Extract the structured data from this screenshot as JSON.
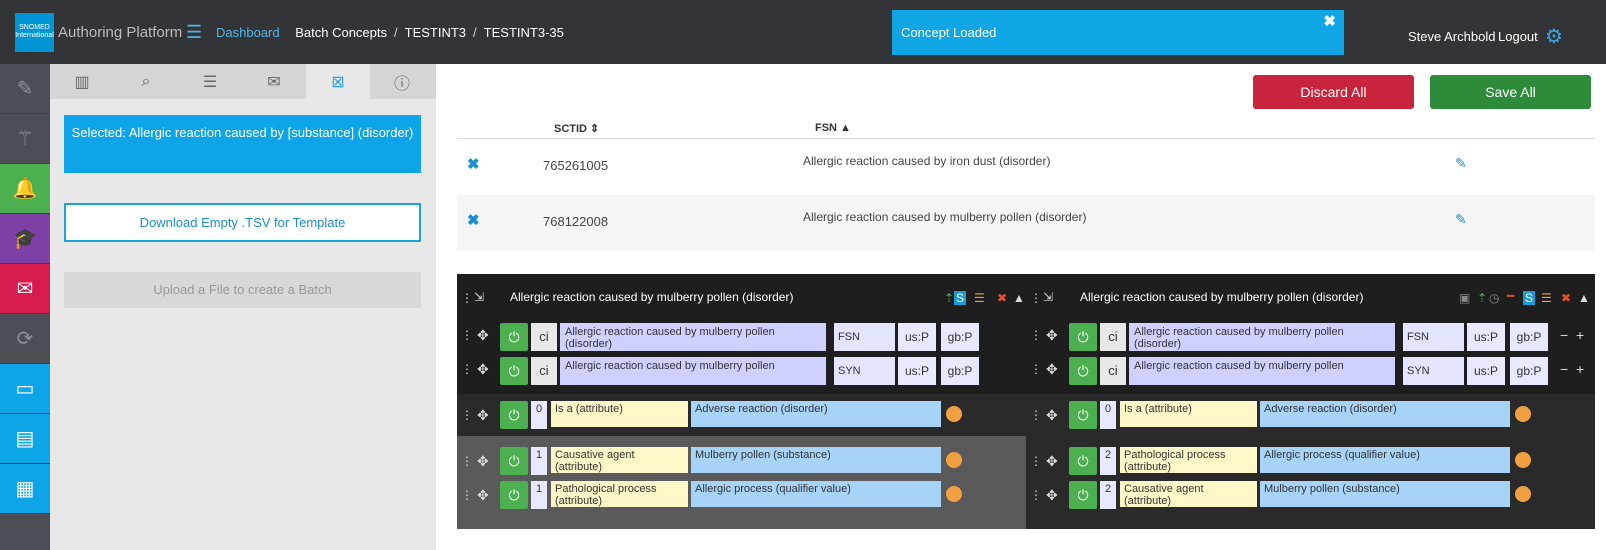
{
  "header": {
    "logo_text": "SNOMED International",
    "app_title": "Authoring Platform",
    "breadcrumb": [
      "Dashboard",
      "Batch Concepts",
      "TESTINT3",
      "TESTINT3-35"
    ],
    "user_name": "Steve Archbold",
    "logout_label": "Logout"
  },
  "toast": {
    "message": "Concept Loaded",
    "close": "✖"
  },
  "side_panel": {
    "selected": "Selected: Allergic reaction caused by [substance] (disorder)",
    "download_label": "Download Empty .TSV for Template",
    "upload_label": "Upload a File to create a Batch"
  },
  "actions": {
    "discard": "Discard All",
    "save": "Save All"
  },
  "table": {
    "headers": {
      "sctid": "SCTID",
      "fsn": "FSN"
    },
    "rows": [
      {
        "sctid": "765261005",
        "fsn": "Allergic reaction caused by iron dust (disorder)"
      },
      {
        "sctid": "768122008",
        "fsn": "Allergic reaction caused by mulberry pollen (disorder)"
      }
    ]
  },
  "editors": [
    {
      "title": "Allergic reaction caused by mulberry pollen (disorder)",
      "descriptions": [
        {
          "case": "ci",
          "term": "Allergic reaction caused by mulberry pollen (disorder)",
          "type": "FSN",
          "us": "us:P",
          "gb": "gb:P"
        },
        {
          "case": "ci",
          "term": "Allergic reaction caused by mulberry pollen",
          "type": "SYN",
          "us": "us:P",
          "gb": "gb:P"
        }
      ],
      "relationships": [
        {
          "group": "0",
          "type": "Is a (attribute)",
          "value": "Adverse reaction (disorder)"
        },
        {
          "group": "1",
          "type": "Causative agent (attribute)",
          "value": "Mulberry pollen (substance)"
        },
        {
          "group": "1",
          "type": "Pathological process (attribute)",
          "value": "Allergic process (qualifier value)"
        }
      ]
    },
    {
      "title": "Allergic reaction caused by mulberry pollen (disorder)",
      "descriptions": [
        {
          "case": "ci",
          "term": "Allergic reaction caused by mulberry pollen (disorder)",
          "type": "FSN",
          "us": "us:P",
          "gb": "gb:P"
        },
        {
          "case": "ci",
          "term": "Allergic reaction caused by mulberry pollen",
          "type": "SYN",
          "us": "us:P",
          "gb": "gb:P"
        }
      ],
      "relationships": [
        {
          "group": "0",
          "type": "Is a (attribute)",
          "value": "Adverse reaction (disorder)"
        },
        {
          "group": "2",
          "type": "Pathological process (attribute)",
          "value": "Allergic process (qualifier value)"
        },
        {
          "group": "2",
          "type": "Causative agent (attribute)",
          "value": "Mulberry pollen (substance)"
        }
      ]
    }
  ],
  "colors": {
    "accent": "#10a6e5",
    "discard": "#c8243d",
    "save": "#2e8b3a",
    "active_green": "#4caf50"
  }
}
